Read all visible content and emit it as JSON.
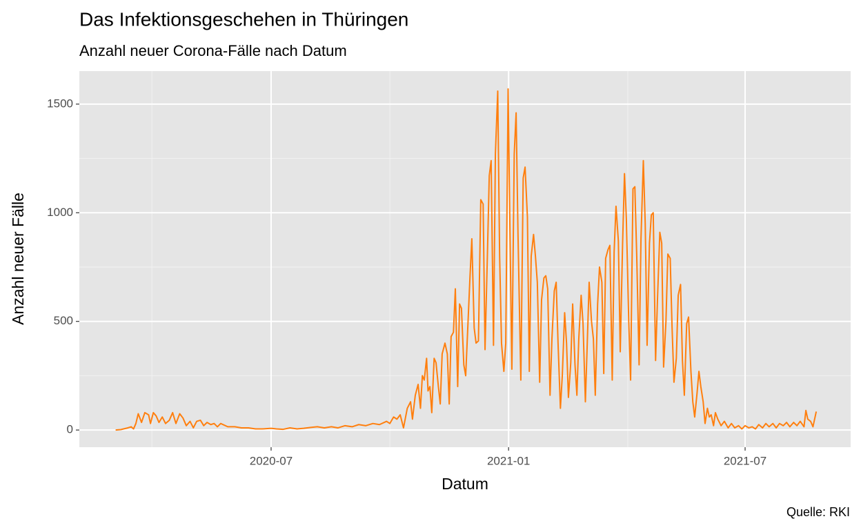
{
  "chart_data": {
    "type": "line",
    "title": "Das Infektionsgeschehen in Thüringen",
    "subtitle": "Anzahl neuer Corona-Fälle nach Datum",
    "x_label": "Datum",
    "y_label": "Anzahl neuer Fälle",
    "caption": "Quelle: RKI",
    "color": "#ff7f0e",
    "grid": true,
    "xlim": [
      2020.089,
      2021.726
    ],
    "xticks": [
      {
        "value": 2020.496,
        "label": "2020-07"
      },
      {
        "value": 2021,
        "label": "2021-01"
      },
      {
        "value": 2021.502,
        "label": "2021-07"
      }
    ],
    "xminor": [
      2020.243,
      2020.748,
      2021.253
    ],
    "ylim": [
      -79,
      1652
    ],
    "yticks": [
      0,
      500,
      1000,
      1500
    ],
    "yminor": [
      250,
      750,
      1250
    ],
    "x": [
      2020.166,
      2020.177,
      2020.192,
      2020.199,
      2020.204,
      2020.209,
      2020.214,
      2020.221,
      2020.228,
      2020.236,
      2020.24,
      2020.246,
      2020.252,
      2020.258,
      2020.265,
      2020.272,
      2020.28,
      2020.287,
      2020.294,
      2020.302,
      2020.309,
      2020.316,
      2020.324,
      2020.331,
      2020.338,
      2020.346,
      2020.353,
      2020.36,
      2020.368,
      2020.375,
      2020.382,
      2020.389,
      2020.404,
      2020.419,
      2020.433,
      2020.448,
      2020.463,
      2020.477,
      2020.496,
      2020.507,
      2020.521,
      2020.536,
      2020.551,
      2020.565,
      2020.58,
      2020.594,
      2020.609,
      2020.624,
      2020.638,
      2020.653,
      2020.668,
      2020.682,
      2020.697,
      2020.712,
      2020.726,
      2020.741,
      2020.748,
      2020.756,
      2020.763,
      2020.77,
      2020.777,
      2020.785,
      2020.792,
      2020.796,
      2020.802,
      2020.808,
      2020.813,
      2020.817,
      2020.821,
      2020.826,
      2020.829,
      2020.833,
      2020.837,
      2020.842,
      2020.846,
      2020.851,
      2020.855,
      2020.859,
      2020.865,
      2020.87,
      2020.874,
      2020.878,
      2020.883,
      2020.887,
      2020.892,
      2020.896,
      2020.9,
      2020.905,
      2020.909,
      2020.914,
      2020.918,
      2020.922,
      2020.927,
      2020.931,
      2020.936,
      2020.941,
      2020.946,
      2020.95,
      2020.955,
      2020.959,
      2020.963,
      2020.968,
      2020.972,
      2020.977,
      2020.981,
      2020.985,
      2020.99,
      2020.994,
      2020.999,
      2021.003,
      2021.007,
      2021.012,
      2021.016,
      2021.02,
      2021.026,
      2021.031,
      2021.035,
      2021.04,
      2021.044,
      2021.048,
      2021.053,
      2021.057,
      2021.061,
      2021.066,
      2021.07,
      2021.075,
      2021.079,
      2021.083,
      2021.088,
      2021.092,
      2021.097,
      2021.101,
      2021.105,
      2021.11,
      2021.114,
      2021.119,
      2021.123,
      2021.127,
      2021.132,
      2021.136,
      2021.141,
      2021.145,
      2021.149,
      2021.154,
      2021.158,
      2021.163,
      2021.167,
      2021.171,
      2021.176,
      2021.18,
      2021.184,
      2021.189,
      2021.193,
      2021.198,
      2021.202,
      2021.206,
      2021.211,
      2021.215,
      2021.22,
      2021.224,
      2021.228,
      2021.233,
      2021.237,
      2021.242,
      2021.246,
      2021.25,
      2021.255,
      2021.259,
      2021.264,
      2021.268,
      2021.272,
      2021.277,
      2021.281,
      2021.286,
      2021.29,
      2021.294,
      2021.299,
      2021.303,
      2021.307,
      2021.312,
      2021.316,
      2021.321,
      2021.325,
      2021.329,
      2021.334,
      2021.338,
      2021.343,
      2021.347,
      2021.351,
      2021.356,
      2021.36,
      2021.365,
      2021.369,
      2021.373,
      2021.378,
      2021.382,
      2021.387,
      2021.391,
      2021.395,
      2021.4,
      2021.404,
      2021.408,
      2021.413,
      2021.417,
      2021.422,
      2021.426,
      2021.43,
      2021.435,
      2021.439,
      2021.444,
      2021.451,
      2021.458,
      2021.466,
      2021.473,
      2021.48,
      2021.488,
      2021.495,
      2021.502,
      2021.51,
      2021.517,
      2021.524,
      2021.531,
      2021.539,
      2021.546,
      2021.553,
      2021.561,
      2021.568,
      2021.575,
      2021.583,
      2021.59,
      2021.597,
      2021.605,
      2021.612,
      2021.619,
      2021.627,
      2021.631,
      2021.635,
      2021.641,
      2021.646,
      2021.653
    ],
    "values": [
      0,
      2,
      10,
      15,
      5,
      30,
      75,
      35,
      80,
      70,
      30,
      80,
      65,
      35,
      60,
      30,
      45,
      80,
      30,
      75,
      55,
      20,
      40,
      10,
      40,
      45,
      20,
      35,
      25,
      30,
      15,
      30,
      15,
      15,
      10,
      10,
      5,
      5,
      8,
      5,
      3,
      10,
      5,
      8,
      12,
      15,
      10,
      15,
      10,
      20,
      15,
      25,
      20,
      30,
      25,
      40,
      30,
      60,
      50,
      70,
      10,
      100,
      130,
      50,
      160,
      210,
      100,
      250,
      230,
      330,
      180,
      200,
      80,
      330,
      310,
      200,
      120,
      350,
      400,
      350,
      120,
      430,
      450,
      650,
      200,
      580,
      560,
      300,
      250,
      500,
      700,
      880,
      470,
      400,
      410,
      1060,
      1040,
      370,
      800,
      1170,
      1240,
      390,
      1270,
      1560,
      800,
      400,
      270,
      400,
      1570,
      900,
      280,
      1270,
      1460,
      900,
      230,
      1160,
      1210,
      980,
      270,
      800,
      900,
      800,
      680,
      220,
      600,
      700,
      710,
      650,
      160,
      420,
      640,
      680,
      400,
      100,
      250,
      540,
      400,
      150,
      310,
      580,
      300,
      160,
      420,
      620,
      490,
      130,
      400,
      680,
      500,
      420,
      160,
      580,
      750,
      680,
      260,
      790,
      830,
      850,
      230,
      820,
      1030,
      870,
      360,
      860,
      1180,
      970,
      500,
      230,
      1110,
      1120,
      800,
      300,
      880,
      1240,
      950,
      390,
      860,
      990,
      1000,
      320,
      600,
      910,
      860,
      290,
      500,
      810,
      790,
      470,
      220,
      330,
      620,
      670,
      320,
      160,
      490,
      520,
      270,
      130,
      60,
      170,
      270,
      200,
      130,
      30,
      100,
      60,
      70,
      20,
      80,
      50,
      20,
      40,
      10,
      30,
      10,
      20,
      5,
      20,
      10,
      15,
      5,
      25,
      10,
      30,
      15,
      30,
      10,
      30,
      20,
      35,
      15,
      35,
      20,
      40,
      15,
      90,
      50,
      40,
      15,
      85
    ]
  }
}
